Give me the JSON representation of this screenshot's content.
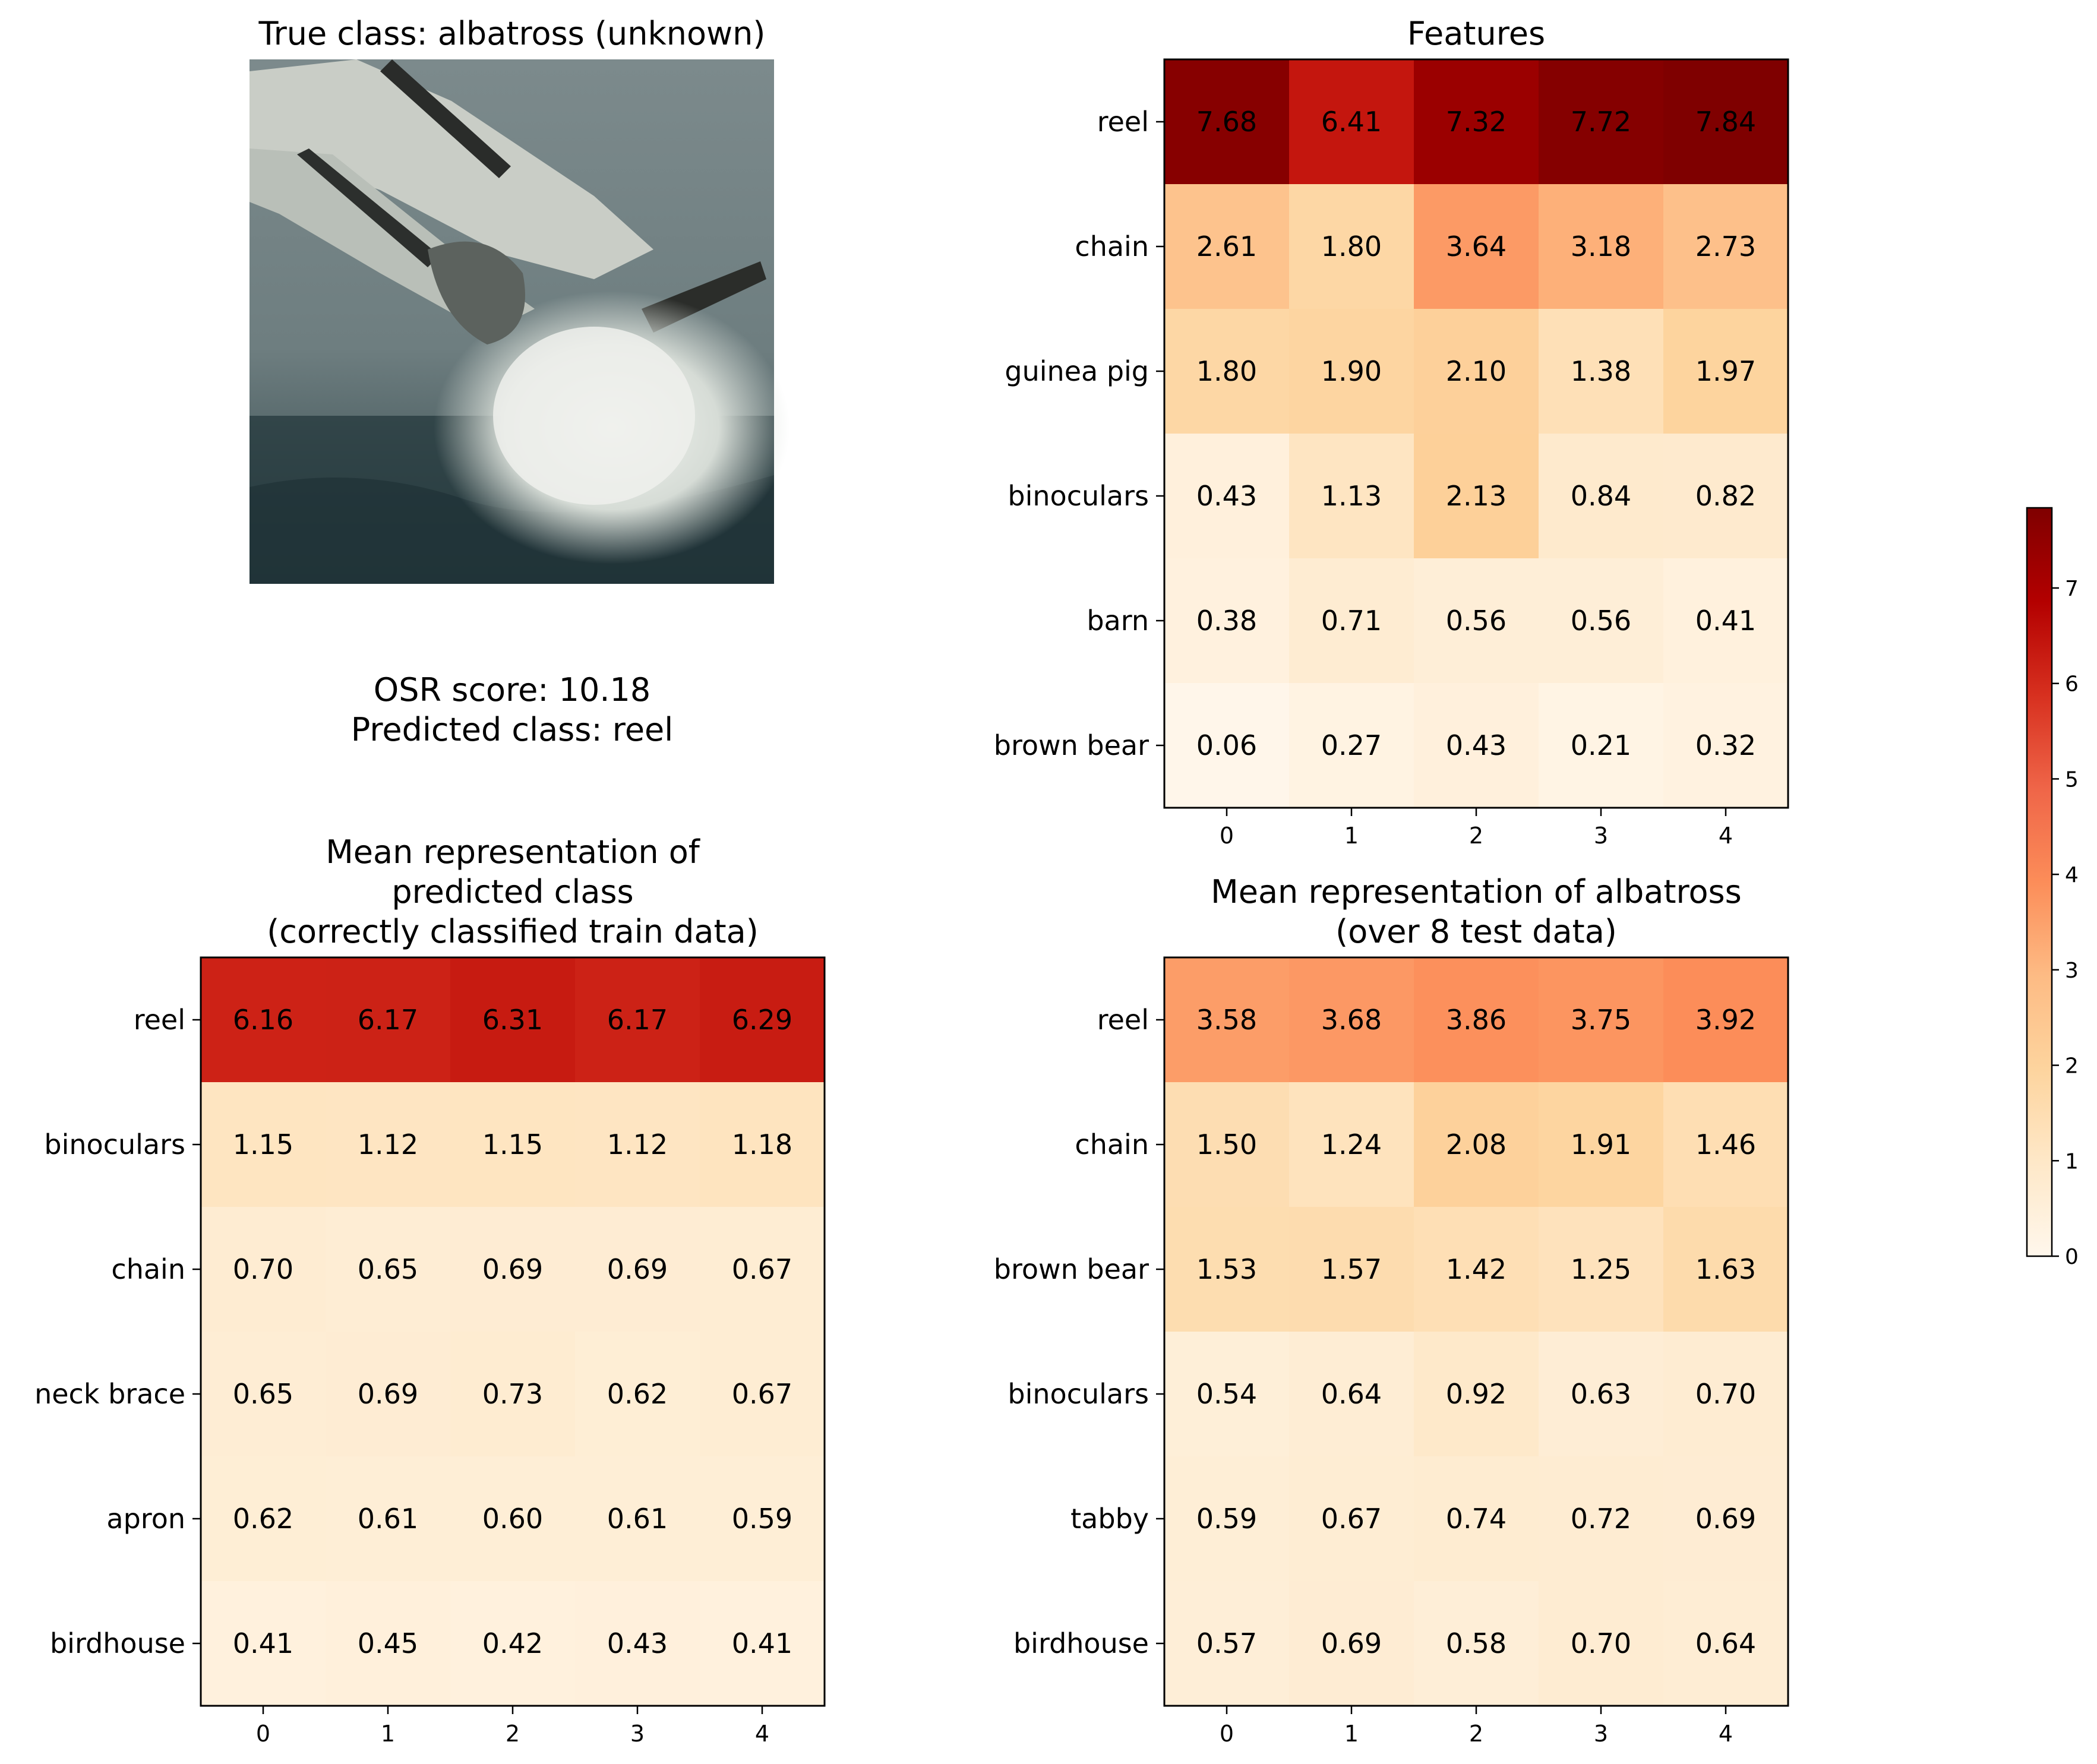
{
  "image_panel": {
    "title": "True class: albatross (unknown)",
    "osr_line": "OSR score: 10.18",
    "predicted_line": "Predicted class: reel"
  },
  "colorbar": {
    "colormap": "OrRd",
    "vmin": 0,
    "vmax": 7.84,
    "ticks": [
      "0",
      "1",
      "2",
      "3",
      "4",
      "5",
      "6",
      "7"
    ]
  },
  "chart_data": [
    {
      "id": "features",
      "type": "heatmap",
      "title_lines": [
        "Features"
      ],
      "rows": [
        "reel",
        "chain",
        "guinea pig",
        "binoculars",
        "barn",
        "brown bear"
      ],
      "columns": [
        "0",
        "1",
        "2",
        "3",
        "4"
      ],
      "values": [
        [
          "7.68",
          "6.41",
          "7.32",
          "7.72",
          "7.84"
        ],
        [
          "2.61",
          "1.80",
          "3.64",
          "3.18",
          "2.73"
        ],
        [
          "1.80",
          "1.90",
          "2.10",
          "1.38",
          "1.97"
        ],
        [
          "0.43",
          "1.13",
          "2.13",
          "0.84",
          "0.82"
        ],
        [
          "0.38",
          "0.71",
          "0.56",
          "0.56",
          "0.41"
        ],
        [
          "0.06",
          "0.27",
          "0.43",
          "0.21",
          "0.32"
        ]
      ]
    },
    {
      "id": "mean-predicted",
      "type": "heatmap",
      "title_lines": [
        "Mean representation of",
        "predicted class",
        "(correctly classified train data)"
      ],
      "rows": [
        "reel",
        "binoculars",
        "chain",
        "neck brace",
        "apron",
        "birdhouse"
      ],
      "columns": [
        "0",
        "1",
        "2",
        "3",
        "4"
      ],
      "values": [
        [
          "6.16",
          "6.17",
          "6.31",
          "6.17",
          "6.29"
        ],
        [
          "1.15",
          "1.12",
          "1.15",
          "1.12",
          "1.18"
        ],
        [
          "0.70",
          "0.65",
          "0.69",
          "0.69",
          "0.67"
        ],
        [
          "0.65",
          "0.69",
          "0.73",
          "0.62",
          "0.67"
        ],
        [
          "0.62",
          "0.61",
          "0.60",
          "0.61",
          "0.59"
        ],
        [
          "0.41",
          "0.45",
          "0.42",
          "0.43",
          "0.41"
        ]
      ]
    },
    {
      "id": "mean-albatross",
      "type": "heatmap",
      "title_lines": [
        "Mean representation of albatross",
        "(over 8 test data)"
      ],
      "rows": [
        "reel",
        "chain",
        "brown bear",
        "binoculars",
        "tabby",
        "birdhouse"
      ],
      "columns": [
        "0",
        "1",
        "2",
        "3",
        "4"
      ],
      "values": [
        [
          "3.58",
          "3.68",
          "3.86",
          "3.75",
          "3.92"
        ],
        [
          "1.50",
          "1.24",
          "2.08",
          "1.91",
          "1.46"
        ],
        [
          "1.53",
          "1.57",
          "1.42",
          "1.25",
          "1.63"
        ],
        [
          "0.54",
          "0.64",
          "0.92",
          "0.63",
          "0.70"
        ],
        [
          "0.59",
          "0.67",
          "0.74",
          "0.72",
          "0.69"
        ],
        [
          "0.57",
          "0.69",
          "0.58",
          "0.70",
          "0.64"
        ]
      ]
    }
  ]
}
